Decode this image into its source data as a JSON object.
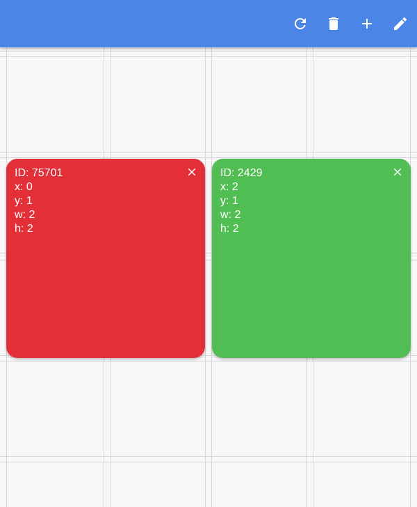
{
  "app_bar": {
    "color": "#4b85e6",
    "actions": [
      {
        "icon": "refresh-icon"
      },
      {
        "icon": "delete-icon"
      },
      {
        "icon": "add-icon"
      },
      {
        "icon": "edit-icon"
      }
    ]
  },
  "tiles": [
    {
      "color": "#e32f38",
      "id_text": "ID: 75701",
      "x_text": "x: 0",
      "y_text": "y: 1",
      "w_text": "w: 2",
      "h_text": "h: 2",
      "close_icon": "close-icon"
    },
    {
      "color": "#51be53",
      "id_text": "ID: 2429",
      "x_text": "x: 2",
      "y_text": "y: 1",
      "w_text": "w: 2",
      "h_text": "h: 2",
      "close_icon": "close-icon"
    }
  ]
}
